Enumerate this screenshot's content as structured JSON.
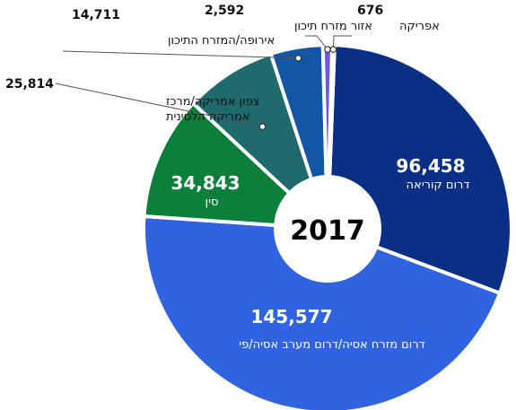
{
  "chart_data": {
    "type": "pie",
    "center_label": "2017",
    "slices": [
      {
        "value": 96458,
        "value_label": "96,458",
        "label": "דרום קוריאה",
        "color": "#0c2f86"
      },
      {
        "value": 145577,
        "value_label": "145,577",
        "label": "דרום מזרח אסיה/דרום מערב אסיה/פי",
        "color": "#2f63df"
      },
      {
        "value": 34843,
        "value_label": "34,843",
        "label": "סין",
        "color": "#0c7f3a"
      },
      {
        "value": 25814,
        "value_label": "25,814",
        "label": "צפון אמריקה/מרכז\nאמריקה הלטינית",
        "color": "#1e6a6c"
      },
      {
        "value": 14711,
        "value_label": "14,711",
        "label": "אירופה/המזרח התיכון",
        "color": "#1356a6"
      },
      {
        "value": 2592,
        "value_label": "2,592",
        "label": "אזור מזרח תיכון",
        "color": "#6d56e8"
      },
      {
        "value": 676,
        "value_label": "676",
        "label": "אפריקה",
        "color": "#3e8ac7"
      }
    ]
  }
}
